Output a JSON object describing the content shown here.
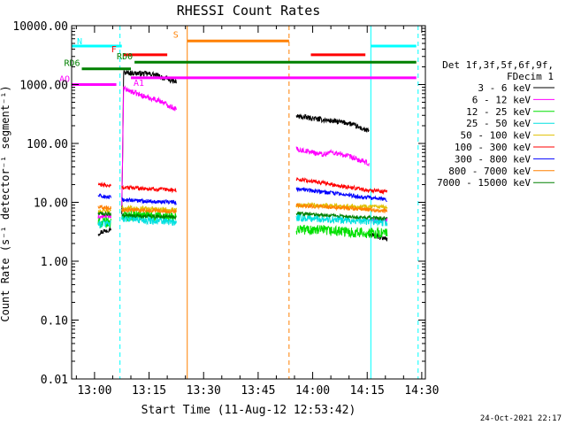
{
  "chart_data": {
    "type": "line",
    "title": "RHESSI Count Rates",
    "xlabel": "Start Time (11-Aug-12 12:53:42)",
    "ylabel": "Count Rate (s⁻¹ detector⁻¹ segment⁻¹)",
    "y_scale": "log",
    "ylim": [
      0.01,
      10000
    ],
    "xlim": [
      "12:53:42",
      "14:31:00"
    ],
    "y_tick_labels": [
      "10000.00",
      "1000.00",
      "100.00",
      "10.00",
      "1.00",
      "0.10",
      "0.01"
    ],
    "x_tick_labels": [
      "13:00",
      "13:15",
      "13:30",
      "13:45",
      "14:00",
      "14:15",
      "14:30"
    ],
    "timestamp": "24-Oct-2021 22:17",
    "legend": {
      "placement": "right",
      "header": [
        "Det 1f,3f,5f,6f,9f,",
        "FDecim 1"
      ],
      "entries": [
        {
          "label": "3 - 6 keV",
          "color": "#000000"
        },
        {
          "label": "6 - 12 keV",
          "color": "#ff00ff"
        },
        {
          "label": "12 - 25 keV",
          "color": "#00e000"
        },
        {
          "label": "25 - 50 keV",
          "color": "#00e0e0"
        },
        {
          "label": "50 - 100 keV",
          "color": "#e0c000"
        },
        {
          "label": "100 - 300 keV",
          "color": "#ff0000"
        },
        {
          "label": "300 - 800 keV",
          "color": "#0000ff"
        },
        {
          "label": "800 - 7000 keV",
          "color": "#ff8000"
        },
        {
          "label": "7000 - 15000 keV",
          "color": "#008000"
        }
      ]
    },
    "series": [
      {
        "name": "3 - 6 keV",
        "color": "#000000",
        "noise": 0.045,
        "segments": [
          {
            "x": [
              "13:01:00",
              "13:03:00",
              "13:04:30"
            ],
            "y": [
              3,
              3.3,
              3.6
            ]
          },
          {
            "x": [
              "13:07:30",
              "13:08:00",
              "13:16:00",
              "13:22:30"
            ],
            "y": [
              6,
              1600,
              1500,
              1100
            ]
          },
          {
            "x": [
              "13:55:30",
              "14:10:00",
              "14:15:30"
            ],
            "y": [
              290,
              220,
              160
            ]
          },
          {
            "x": [
              "14:15:30",
              "14:20:30"
            ],
            "y": [
              2.8,
              2.4
            ]
          }
        ]
      },
      {
        "name": "6 - 12 keV",
        "color": "#ff00ff",
        "noise": 0.045,
        "segments": [
          {
            "x": [
              "13:01:00",
              "13:04:30"
            ],
            "y": [
              5.5,
              6.0
            ]
          },
          {
            "x": [
              "13:07:30",
              "13:08:00",
              "13:14:00",
              "13:18:00",
              "13:22:30"
            ],
            "y": [
              8,
              850,
              620,
              530,
              380
            ]
          },
          {
            "x": [
              "13:55:30",
              "14:03:00",
              "14:05:00",
              "14:10:00",
              "14:15:30"
            ],
            "y": [
              80,
              65,
              72,
              60,
              45
            ]
          },
          {
            "x": [
              "14:15:30",
              "14:20:30"
            ],
            "y": [
              5,
              5
            ]
          }
        ]
      },
      {
        "name": "12 - 25 keV",
        "color": "#00e000",
        "noise": 0.09,
        "segments": [
          {
            "x": [
              "13:01:00",
              "13:04:30"
            ],
            "y": [
              4.5,
              4.5
            ]
          },
          {
            "x": [
              "13:07:30",
              "13:12:00",
              "13:22:30"
            ],
            "y": [
              6,
              6,
              5.5
            ]
          },
          {
            "x": [
              "13:55:30",
              "14:15:30"
            ],
            "y": [
              3.5,
              3.0
            ]
          },
          {
            "x": [
              "14:15:30",
              "14:20:30"
            ],
            "y": [
              3,
              3
            ]
          }
        ]
      },
      {
        "name": "25 - 50 keV",
        "color": "#00e0e0",
        "noise": 0.07,
        "segments": [
          {
            "x": [
              "13:01:00",
              "13:04:30"
            ],
            "y": [
              4.2,
              4.5
            ]
          },
          {
            "x": [
              "13:07:30",
              "13:22:30"
            ],
            "y": [
              5.5,
              4.5
            ]
          },
          {
            "x": [
              "13:55:30",
              "14:15:30"
            ],
            "y": [
              5.5,
              4.8
            ]
          },
          {
            "x": [
              "14:15:30",
              "14:20:30"
            ],
            "y": [
              4.8,
              4.5
            ]
          }
        ]
      },
      {
        "name": "50 - 100 keV",
        "color": "#e0c000",
        "noise": 0.04,
        "segments": [
          {
            "x": [
              "13:01:00",
              "13:04:30"
            ],
            "y": [
              7,
              7
            ]
          },
          {
            "x": [
              "13:07:30",
              "13:22:30"
            ],
            "y": [
              8,
              7.5
            ]
          },
          {
            "x": [
              "13:55:30",
              "14:15:30"
            ],
            "y": [
              9,
              8.5
            ]
          },
          {
            "x": [
              "14:15:30",
              "14:20:30"
            ],
            "y": [
              8.5,
              8
            ]
          }
        ]
      },
      {
        "name": "100 - 300 keV",
        "color": "#ff0000",
        "noise": 0.035,
        "segments": [
          {
            "x": [
              "13:01:00",
              "13:04:30"
            ],
            "y": [
              20,
              19
            ]
          },
          {
            "x": [
              "13:07:30",
              "13:22:30"
            ],
            "y": [
              18,
              16
            ]
          },
          {
            "x": [
              "13:55:30",
              "14:15:30"
            ],
            "y": [
              25,
              16
            ]
          },
          {
            "x": [
              "14:15:30",
              "14:20:30"
            ],
            "y": [
              16,
              15
            ]
          }
        ]
      },
      {
        "name": "300 - 800 keV",
        "color": "#0000ff",
        "noise": 0.035,
        "segments": [
          {
            "x": [
              "13:01:00",
              "13:04:30"
            ],
            "y": [
              13,
              12
            ]
          },
          {
            "x": [
              "13:07:30",
              "13:22:30"
            ],
            "y": [
              11,
              10
            ]
          },
          {
            "x": [
              "13:55:30",
              "14:15:30"
            ],
            "y": [
              17,
              12
            ]
          },
          {
            "x": [
              "14:15:30",
              "14:20:30"
            ],
            "y": [
              12,
              11
            ]
          }
        ]
      },
      {
        "name": "800 - 7000 keV",
        "color": "#ff8000",
        "noise": 0.035,
        "segments": [
          {
            "x": [
              "13:01:00",
              "13:04:30"
            ],
            "y": [
              8.5,
              8
            ]
          },
          {
            "x": [
              "13:07:30",
              "13:22:30"
            ],
            "y": [
              7.5,
              7
            ]
          },
          {
            "x": [
              "13:55:30",
              "14:15:30"
            ],
            "y": [
              9,
              7.5
            ]
          },
          {
            "x": [
              "14:15:30",
              "14:20:30"
            ],
            "y": [
              7.5,
              7
            ]
          }
        ]
      },
      {
        "name": "7000 - 15000 keV",
        "color": "#008000",
        "noise": 0.03,
        "segments": [
          {
            "x": [
              "13:01:00",
              "13:04:30"
            ],
            "y": [
              6.5,
              6.2
            ]
          },
          {
            "x": [
              "13:07:30",
              "13:22:30"
            ],
            "y": [
              6.0,
              5.6
            ]
          },
          {
            "x": [
              "13:55:30",
              "14:15:30"
            ],
            "y": [
              6.5,
              5.5
            ]
          },
          {
            "x": [
              "14:15:30",
              "14:20:30"
            ],
            "y": [
              5.5,
              5.3
            ]
          }
        ]
      }
    ],
    "flag_bars": [
      {
        "label": "N",
        "color": "#00ffff",
        "y": 4500,
        "spans": [
          [
            "12:53:42",
            "13:07:30"
          ],
          [
            "14:16:00",
            "14:28:30"
          ]
        ]
      },
      {
        "label": "F",
        "color": "#ff0000",
        "y": 3200,
        "spans": [
          [
            "13:08:00",
            "13:20:00"
          ],
          [
            "13:59:30",
            "14:14:30"
          ]
        ]
      },
      {
        "label": "S",
        "color": "#ff8000",
        "y": 5500,
        "spans": [
          [
            "13:25:30",
            "13:53:30"
          ]
        ]
      },
      {
        "label": "RD0",
        "color": "#008000",
        "y": 2400,
        "spans": [
          [
            "13:11:00",
            "14:28:30"
          ]
        ]
      },
      {
        "label": "RD6",
        "color": "#008000",
        "y": 1850,
        "spans": [
          [
            "12:56:30",
            "13:10:00"
          ]
        ]
      },
      {
        "label": "AO",
        "color": "#ff00ff",
        "y": 1000,
        "spans": [
          [
            "12:53:42",
            "13:06:00"
          ]
        ]
      },
      {
        "label": "A1",
        "color": "#ff00ff",
        "y": 1300,
        "spans": [
          [
            "13:10:00",
            "14:28:30"
          ]
        ]
      }
    ],
    "vertical_lines": [
      {
        "x": "12:53:42",
        "color": "#00ffff",
        "style": "solid"
      },
      {
        "x": "13:07:00",
        "color": "#00ffff",
        "style": "dashed"
      },
      {
        "x": "13:25:30",
        "color": "#ff8000",
        "style": "solid"
      },
      {
        "x": "13:53:30",
        "color": "#ff8000",
        "style": "dashed"
      },
      {
        "x": "14:16:00",
        "color": "#00ffff",
        "style": "solid"
      },
      {
        "x": "14:29:00",
        "color": "#00ffff",
        "style": "dashed"
      }
    ]
  }
}
